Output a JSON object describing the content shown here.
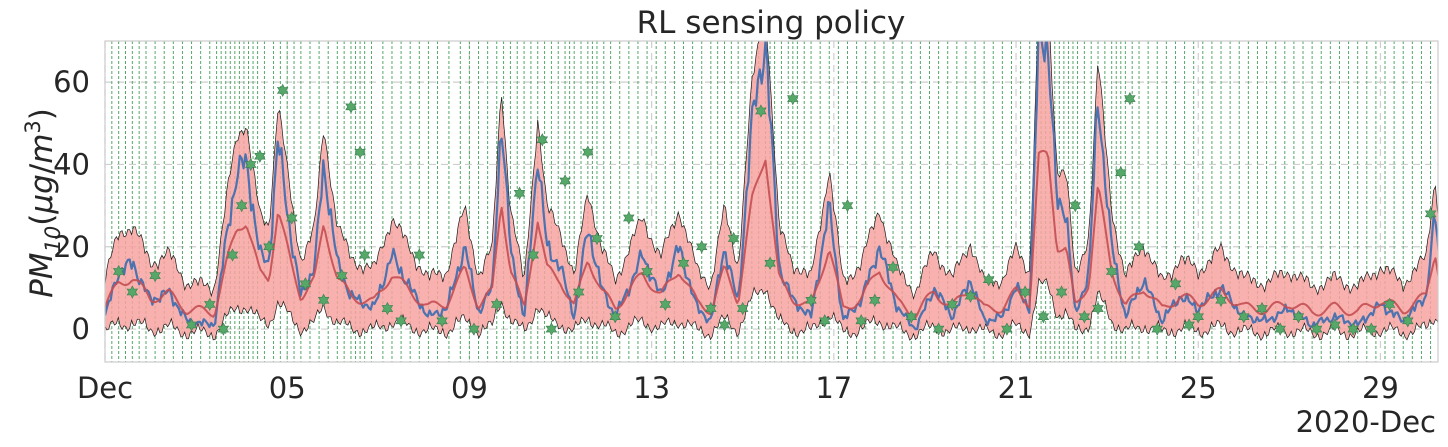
{
  "chart_data": {
    "type": "line",
    "title": "RL sensing policy",
    "ylabel": {
      "main": "PM",
      "sub": "10",
      "unit_open": "(",
      "unit_mu": "μg",
      "unit_slash": "/",
      "unit_m": "m",
      "unit_sup": "3",
      "unit_close": ")"
    },
    "x_offset_label": "2020-Dec",
    "x_axis": {
      "type": "date",
      "start": "2020-12-01",
      "end": "2020-12-30T12:00",
      "unit": "day"
    },
    "y_axis": {
      "min": -8,
      "max": 70
    },
    "x_ticks": [
      {
        "day": 1,
        "label": "Dec"
      },
      {
        "day": 5,
        "label": "05"
      },
      {
        "day": 9,
        "label": "09"
      },
      {
        "day": 13,
        "label": "13"
      },
      {
        "day": 17,
        "label": "17"
      },
      {
        "day": 21,
        "label": "21"
      },
      {
        "day": 25,
        "label": "25"
      },
      {
        "day": 29,
        "label": "29"
      }
    ],
    "y_ticks": [
      0,
      20,
      40,
      60
    ],
    "grid": true,
    "colors": {
      "observed": "#4c72b0",
      "predicted": "#c44e52",
      "band_fill": "#f7a3a0",
      "band_edge": "#1a1a1a",
      "sensing": "#55a868",
      "grid": "#cfcfcf"
    },
    "anchors": [
      [
        1.0,
        3
      ],
      [
        1.3,
        14
      ],
      [
        1.6,
        16
      ],
      [
        2.0,
        7
      ],
      [
        2.4,
        9
      ],
      [
        2.8,
        2
      ],
      [
        3.4,
        1
      ],
      [
        3.7,
        25
      ],
      [
        3.9,
        38
      ],
      [
        4.1,
        41
      ],
      [
        4.4,
        18
      ],
      [
        4.6,
        16
      ],
      [
        4.8,
        46
      ],
      [
        5.1,
        21
      ],
      [
        5.3,
        8
      ],
      [
        5.6,
        15
      ],
      [
        5.8,
        40
      ],
      [
        6.1,
        16
      ],
      [
        6.4,
        8
      ],
      [
        6.9,
        5
      ],
      [
        7.3,
        18
      ],
      [
        7.7,
        10
      ],
      [
        8.1,
        3
      ],
      [
        8.5,
        5
      ],
      [
        8.9,
        20
      ],
      [
        9.2,
        4
      ],
      [
        9.5,
        10
      ],
      [
        9.7,
        50
      ],
      [
        9.9,
        20
      ],
      [
        10.2,
        2
      ],
      [
        10.5,
        42
      ],
      [
        10.7,
        20
      ],
      [
        11.0,
        15
      ],
      [
        11.3,
        3
      ],
      [
        11.6,
        25
      ],
      [
        11.9,
        10
      ],
      [
        12.2,
        3
      ],
      [
        12.5,
        10
      ],
      [
        12.8,
        18
      ],
      [
        13.2,
        8
      ],
      [
        13.6,
        20
      ],
      [
        14.0,
        5
      ],
      [
        14.3,
        2
      ],
      [
        14.6,
        20
      ],
      [
        14.9,
        6
      ],
      [
        15.2,
        50
      ],
      [
        15.5,
        70
      ],
      [
        15.8,
        15
      ],
      [
        16.1,
        7
      ],
      [
        16.5,
        3
      ],
      [
        16.9,
        30
      ],
      [
        17.2,
        2
      ],
      [
        17.6,
        7
      ],
      [
        18.0,
        20
      ],
      [
        18.4,
        5
      ],
      [
        18.8,
        0
      ],
      [
        19.2,
        10
      ],
      [
        19.6,
        3
      ],
      [
        20.0,
        12
      ],
      [
        20.3,
        2
      ],
      [
        20.7,
        3
      ],
      [
        21.0,
        10
      ],
      [
        21.3,
        5
      ],
      [
        21.5,
        70
      ],
      [
        21.7,
        70
      ],
      [
        21.9,
        30
      ],
      [
        22.1,
        29
      ],
      [
        22.3,
        3
      ],
      [
        22.6,
        14
      ],
      [
        22.8,
        56
      ],
      [
        23.1,
        20
      ],
      [
        23.4,
        3
      ],
      [
        23.8,
        12
      ],
      [
        24.2,
        2
      ],
      [
        24.6,
        8
      ],
      [
        25.0,
        5
      ],
      [
        25.5,
        10
      ],
      [
        26.0,
        3
      ],
      [
        26.5,
        2
      ],
      [
        27.0,
        5
      ],
      [
        27.5,
        1
      ],
      [
        28.0,
        3
      ],
      [
        28.5,
        1
      ],
      [
        29.0,
        6
      ],
      [
        29.5,
        2
      ],
      [
        30.0,
        8
      ],
      [
        30.2,
        28
      ],
      [
        30.4,
        2
      ]
    ],
    "sensing_markers": [
      [
        1.3,
        14
      ],
      [
        1.6,
        9
      ],
      [
        2.1,
        13
      ],
      [
        2.9,
        1
      ],
      [
        3.3,
        6
      ],
      [
        3.6,
        0
      ],
      [
        3.8,
        18
      ],
      [
        4.0,
        30
      ],
      [
        4.2,
        40
      ],
      [
        4.4,
        42
      ],
      [
        4.6,
        20
      ],
      [
        4.9,
        58
      ],
      [
        5.1,
        27
      ],
      [
        5.4,
        11
      ],
      [
        5.8,
        7
      ],
      [
        6.2,
        13
      ],
      [
        6.4,
        54
      ],
      [
        6.6,
        43
      ],
      [
        6.7,
        18
      ],
      [
        7.2,
        5
      ],
      [
        7.5,
        2
      ],
      [
        7.9,
        18
      ],
      [
        8.4,
        2
      ],
      [
        9.1,
        0
      ],
      [
        9.6,
        6
      ],
      [
        10.1,
        33
      ],
      [
        10.4,
        18
      ],
      [
        10.6,
        46
      ],
      [
        10.8,
        0
      ],
      [
        11.1,
        36
      ],
      [
        11.4,
        9
      ],
      [
        11.6,
        43
      ],
      [
        11.8,
        22
      ],
      [
        12.2,
        3
      ],
      [
        12.5,
        27
      ],
      [
        12.9,
        14
      ],
      [
        13.3,
        6
      ],
      [
        13.7,
        16
      ],
      [
        14.1,
        20
      ],
      [
        14.3,
        5
      ],
      [
        14.6,
        1
      ],
      [
        14.8,
        22
      ],
      [
        15.0,
        5
      ],
      [
        15.4,
        53
      ],
      [
        15.6,
        16
      ],
      [
        16.1,
        56
      ],
      [
        16.5,
        7
      ],
      [
        16.8,
        2
      ],
      [
        17.3,
        30
      ],
      [
        17.6,
        2
      ],
      [
        17.9,
        7
      ],
      [
        18.3,
        15
      ],
      [
        18.7,
        3
      ],
      [
        19.3,
        0
      ],
      [
        19.6,
        6
      ],
      [
        20.0,
        8
      ],
      [
        20.4,
        12
      ],
      [
        20.8,
        0
      ],
      [
        21.2,
        9
      ],
      [
        21.6,
        3
      ],
      [
        22.0,
        9
      ],
      [
        22.3,
        30
      ],
      [
        22.5,
        3
      ],
      [
        22.8,
        5
      ],
      [
        23.1,
        14
      ],
      [
        23.3,
        38
      ],
      [
        23.5,
        56
      ],
      [
        23.7,
        20
      ],
      [
        24.1,
        0
      ],
      [
        24.5,
        11
      ],
      [
        24.8,
        1
      ],
      [
        25.0,
        3
      ],
      [
        25.5,
        7
      ],
      [
        26.0,
        3
      ],
      [
        26.4,
        5
      ],
      [
        26.8,
        0
      ],
      [
        27.2,
        3
      ],
      [
        27.6,
        0
      ],
      [
        28.0,
        1
      ],
      [
        28.4,
        0
      ],
      [
        28.8,
        0
      ],
      [
        29.2,
        6
      ],
      [
        29.6,
        2
      ],
      [
        30.1,
        28
      ]
    ],
    "sensing_times": [
      1.0,
      1.15,
      1.3,
      1.45,
      1.6,
      1.75,
      1.9,
      2.1,
      2.3,
      2.5,
      2.7,
      2.9,
      3.1,
      3.3,
      3.45,
      3.55,
      3.65,
      3.75,
      3.85,
      3.95,
      4.05,
      4.15,
      4.25,
      4.35,
      4.5,
      4.7,
      4.85,
      5.0,
      5.15,
      5.3,
      5.5,
      5.7,
      5.9,
      6.1,
      6.25,
      6.4,
      6.5,
      6.6,
      6.7,
      6.85,
      7.1,
      7.3,
      7.5,
      7.7,
      7.9,
      8.1,
      8.3,
      8.55,
      8.8,
      9.0,
      9.2,
      9.4,
      9.6,
      9.75,
      9.9,
      10.05,
      10.2,
      10.35,
      10.5,
      10.65,
      10.8,
      10.95,
      11.1,
      11.2,
      11.3,
      11.45,
      11.6,
      11.7,
      11.8,
      11.95,
      12.1,
      12.3,
      12.5,
      12.7,
      12.9,
      13.1,
      13.3,
      13.5,
      13.7,
      13.9,
      14.1,
      14.3,
      14.45,
      14.6,
      14.75,
      14.9,
      15.05,
      15.2,
      15.35,
      15.5,
      15.6,
      15.7,
      15.85,
      16.0,
      16.1,
      16.2,
      16.35,
      16.5,
      16.7,
      16.9,
      17.1,
      17.3,
      17.5,
      17.7,
      17.9,
      18.1,
      18.3,
      18.5,
      18.7,
      18.9,
      19.1,
      19.3,
      19.5,
      19.7,
      19.9,
      20.1,
      20.3,
      20.5,
      20.7,
      20.9,
      21.1,
      21.3,
      21.45,
      21.55,
      21.65,
      21.75,
      21.85,
      21.95,
      22.05,
      22.15,
      22.25,
      22.35,
      22.5,
      22.65,
      22.8,
      22.95,
      23.1,
      23.2,
      23.3,
      23.4,
      23.55,
      23.7,
      23.9,
      24.1,
      24.3,
      24.5,
      24.7,
      24.9,
      25.1,
      25.3,
      25.5,
      25.7,
      25.9,
      26.1,
      26.3,
      26.5,
      26.7,
      26.9,
      27.1,
      27.3,
      27.5,
      27.7,
      27.9,
      28.1,
      28.3,
      28.5,
      28.7,
      28.9,
      29.1,
      29.3,
      29.5,
      29.7,
      29.9,
      30.1,
      30.3
    ]
  }
}
